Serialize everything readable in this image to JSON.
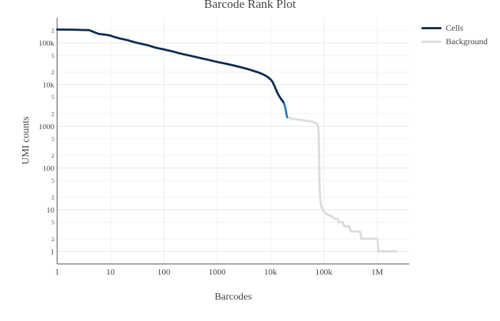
{
  "chart_data": {
    "type": "line",
    "title": "Barcode Rank Plot",
    "xlabel": "Barcodes",
    "ylabel": "UMI counts",
    "x_scale": "log",
    "y_scale": "log",
    "xlim": [
      1,
      4000000
    ],
    "ylim": [
      0.5,
      400000
    ],
    "grid": true,
    "legend_position": "right",
    "x_major_ticks": [
      {
        "value": 1,
        "label": "1"
      },
      {
        "value": 10,
        "label": "10"
      },
      {
        "value": 100,
        "label": "100"
      },
      {
        "value": 1000,
        "label": "1000"
      },
      {
        "value": 10000,
        "label": "10k"
      },
      {
        "value": 100000,
        "label": "100k"
      },
      {
        "value": 1000000,
        "label": "1M"
      }
    ],
    "y_major_ticks": [
      {
        "value": 1,
        "label": "1"
      },
      {
        "value": 10,
        "label": "10"
      },
      {
        "value": 100,
        "label": "100"
      },
      {
        "value": 1000,
        "label": "1000"
      },
      {
        "value": 10000,
        "label": "10k"
      },
      {
        "value": 100000,
        "label": "100k"
      }
    ],
    "y_minor_ticks": [
      {
        "value": 2,
        "label": "2"
      },
      {
        "value": 5,
        "label": "5"
      },
      {
        "value": 20,
        "label": "2"
      },
      {
        "value": 50,
        "label": "5"
      },
      {
        "value": 200,
        "label": "2"
      },
      {
        "value": 500,
        "label": "5"
      },
      {
        "value": 2000,
        "label": "2"
      },
      {
        "value": 5000,
        "label": "5"
      },
      {
        "value": 20000,
        "label": "2"
      },
      {
        "value": 50000,
        "label": "5"
      },
      {
        "value": 200000,
        "label": "2"
      }
    ],
    "series": [
      {
        "name": "Cells",
        "color": "#0e2c52",
        "points": [
          [
            1,
            210000
          ],
          [
            2,
            208000
          ],
          [
            3,
            205000
          ],
          [
            4,
            203000
          ],
          [
            5,
            180000
          ],
          [
            6,
            165000
          ],
          [
            8,
            158000
          ],
          [
            10,
            150000
          ],
          [
            12,
            138000
          ],
          [
            15,
            128000
          ],
          [
            20,
            118000
          ],
          [
            30,
            102000
          ],
          [
            50,
            88000
          ],
          [
            70,
            77000
          ],
          [
            100,
            70000
          ],
          [
            150,
            62000
          ],
          [
            200,
            56000
          ],
          [
            300,
            50000
          ],
          [
            500,
            43000
          ],
          [
            700,
            39000
          ],
          [
            1000,
            35000
          ],
          [
            1500,
            31500
          ],
          [
            2000,
            29000
          ],
          [
            3000,
            25500
          ],
          [
            4000,
            23000
          ],
          [
            5000,
            21000
          ],
          [
            6000,
            19500
          ],
          [
            7000,
            18000
          ],
          [
            8000,
            16500
          ],
          [
            9000,
            15000
          ],
          [
            10000,
            13500
          ],
          [
            11000,
            11500
          ],
          [
            12000,
            9000
          ],
          [
            13000,
            7000
          ],
          [
            14000,
            5800
          ],
          [
            15000,
            5000
          ],
          [
            16000,
            4400
          ],
          [
            17000,
            4000
          ],
          [
            18000,
            3500
          ]
        ]
      },
      {
        "name": "",
        "color": "#2c7ac0",
        "points": [
          [
            18000,
            3500
          ],
          [
            19000,
            2800
          ],
          [
            19500,
            2300
          ],
          [
            20000,
            1900
          ],
          [
            20500,
            1650
          ]
        ]
      },
      {
        "name": "Background",
        "color": "#dcdcdc",
        "points": [
          [
            20500,
            1650
          ],
          [
            25000,
            1520
          ],
          [
            40000,
            1400
          ],
          [
            60000,
            1300
          ],
          [
            75000,
            1150
          ],
          [
            78000,
            1000
          ],
          [
            80000,
            700
          ],
          [
            81000,
            300
          ],
          [
            82000,
            100
          ],
          [
            83000,
            40
          ],
          [
            85000,
            20
          ],
          [
            88000,
            13
          ],
          [
            95000,
            10
          ],
          [
            110000,
            8
          ],
          [
            140000,
            7
          ],
          [
            160000,
            6
          ],
          [
            185000,
            6
          ],
          [
            190000,
            5
          ],
          [
            230000,
            5
          ],
          [
            240000,
            4
          ],
          [
            300000,
            4
          ],
          [
            320000,
            3
          ],
          [
            480000,
            3
          ],
          [
            500000,
            2
          ],
          [
            1000000,
            2
          ],
          [
            1070000,
            1
          ],
          [
            2300000,
            1
          ]
        ]
      }
    ],
    "legend": [
      {
        "name": "Cells",
        "color": "#0e2c52"
      },
      {
        "name": "Background",
        "color": "#dcdcdc"
      }
    ]
  }
}
